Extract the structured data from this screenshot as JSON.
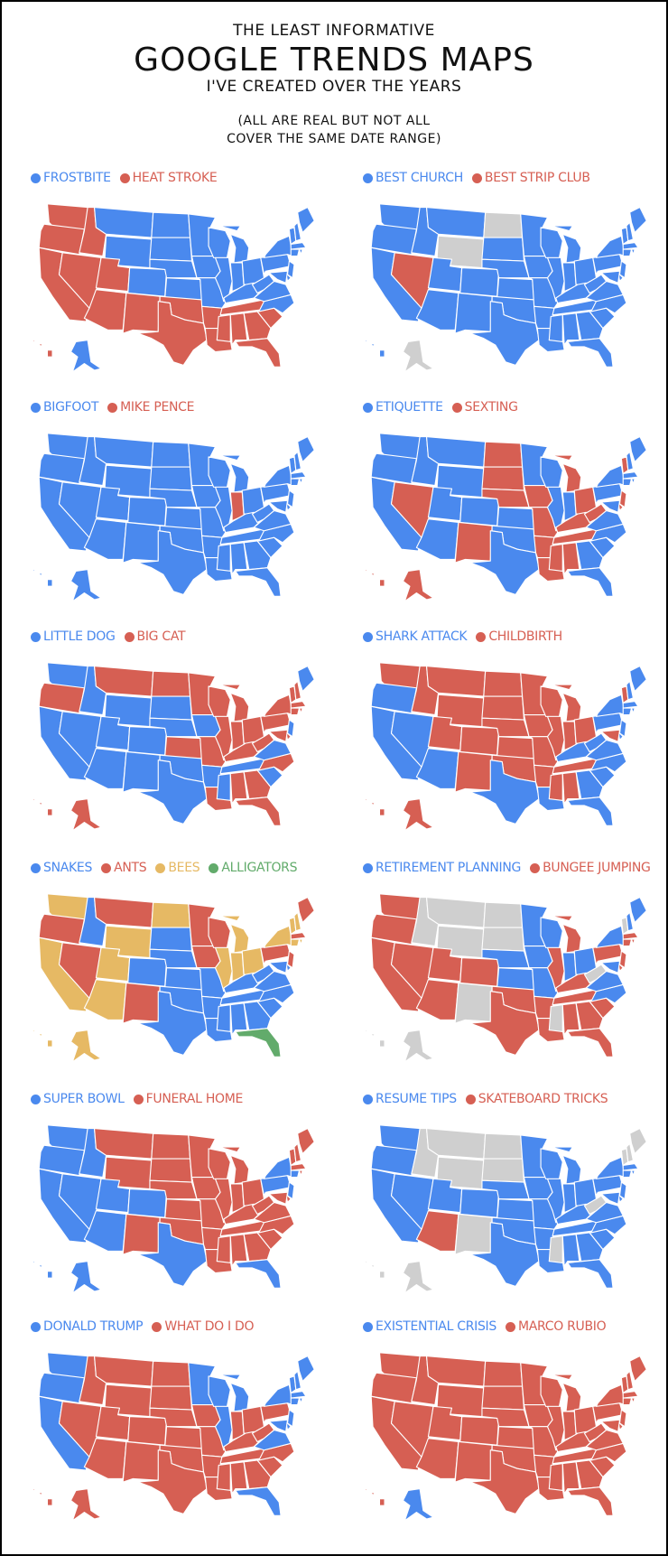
{
  "header": {
    "line1": "THE LEAST INFORMATIVE",
    "line2": "GOOGLE TRENDS MAPS",
    "line3": "I'VE CREATED OVER THE YEARS",
    "note_line1": "(ALL ARE REAL BUT NOT ALL",
    "note_line2": "COVER THE SAME DATE RANGE)"
  },
  "colors": {
    "B": "#4a89ee",
    "R": "#d65f53",
    "Y": "#e6b964",
    "G": "#62ab6b",
    "N": "#cfcfcf"
  },
  "maps": [
    {
      "legend": [
        {
          "label": "FROSTBITE",
          "color": "#4a89ee"
        },
        {
          "label": "HEAT STROKE",
          "color": "#d65f53"
        }
      ],
      "default": "B",
      "states": {
        "WA": "R",
        "OR": "R",
        "CA": "R",
        "ID": "R",
        "NV": "R",
        "UT": "R",
        "AZ": "R",
        "NM": "R",
        "TX": "R",
        "OK": "R",
        "AR": "R",
        "LA": "R",
        "MS": "R",
        "AL": "R",
        "GA": "R",
        "FL": "R",
        "SC": "R",
        "TN": "R",
        "HI": "R"
      }
    },
    {
      "legend": [
        {
          "label": "BEST CHURCH",
          "color": "#4a89ee"
        },
        {
          "label": "BEST STRIP CLUB",
          "color": "#d65f53"
        }
      ],
      "default": "B",
      "states": {
        "NV": "R",
        "WY": "N",
        "ND": "N",
        "AK": "N"
      }
    },
    {
      "legend": [
        {
          "label": "BIGFOOT",
          "color": "#4a89ee"
        },
        {
          "label": "MIKE PENCE",
          "color": "#d65f53"
        }
      ],
      "default": "B",
      "states": {
        "IN": "R"
      }
    },
    {
      "legend": [
        {
          "label": "ETIQUETTE",
          "color": "#4a89ee"
        },
        {
          "label": "SEXTING",
          "color": "#d65f53"
        }
      ],
      "default": "B",
      "states": {
        "NV": "R",
        "NM": "R",
        "ND": "R",
        "SD": "R",
        "NE": "R",
        "IA": "R",
        "MO": "R",
        "AR": "R",
        "LA": "R",
        "MS": "R",
        "AL": "R",
        "TN": "R",
        "KY": "R",
        "OH": "R",
        "WV": "R",
        "MI": "R",
        "VT": "R",
        "NJ": "R",
        "DE": "R",
        "AK": "R",
        "HI": "R"
      }
    },
    {
      "legend": [
        {
          "label": "LITTLE DOG",
          "color": "#4a89ee"
        },
        {
          "label": "BIG CAT",
          "color": "#d65f53"
        }
      ],
      "default": "B",
      "states": {
        "OR": "R",
        "MT": "R",
        "ND": "R",
        "MN": "R",
        "WI": "R",
        "MI": "R",
        "IL": "R",
        "IN": "R",
        "OH": "R",
        "KS": "R",
        "MO": "R",
        "KY": "R",
        "WV": "R",
        "PA": "R",
        "NY": "R",
        "VT": "R",
        "NH": "R",
        "MA": "R",
        "CT": "R",
        "RI": "R",
        "MD": "R",
        "DE": "R",
        "NC": "R",
        "AL": "R",
        "GA": "R",
        "FL": "R",
        "LA": "R",
        "AK": "R",
        "HI": "R"
      }
    },
    {
      "legend": [
        {
          "label": "SHARK ATTACK",
          "color": "#4a89ee"
        },
        {
          "label": "CHILDBIRTH",
          "color": "#d65f53"
        }
      ],
      "default": "R",
      "states": {
        "OR": "B",
        "CA": "B",
        "NV": "B",
        "AZ": "B",
        "TX": "B",
        "LA": "B",
        "GA": "B",
        "FL": "B",
        "SC": "B",
        "NC": "B",
        "VA": "B",
        "WV": "B",
        "KY": "B",
        "PA": "B",
        "NY": "B",
        "NJ": "B",
        "CT": "B",
        "RI": "B",
        "MA": "B",
        "NH": "B",
        "ME": "B",
        "DE": "B"
      }
    },
    {
      "legend": [
        {
          "label": "SNAKES",
          "color": "#4a89ee"
        },
        {
          "label": "ANTS",
          "color": "#d65f53"
        },
        {
          "label": "BEES",
          "color": "#e6b964"
        },
        {
          "label": "ALLIGATORS",
          "color": "#62ab6b"
        }
      ],
      "default": "B",
      "states": {
        "WA": "Y",
        "OR": "R",
        "CA": "Y",
        "NV": "R",
        "MT": "R",
        "ID": "B",
        "WY": "Y",
        "UT": "Y",
        "AZ": "Y",
        "NM": "R",
        "ND": "Y",
        "MN": "R",
        "WI": "R",
        "IA": "R",
        "MI": "Y",
        "IL": "Y",
        "IN": "Y",
        "OH": "Y",
        "PA": "R",
        "NJ": "R",
        "NY": "Y",
        "VT": "Y",
        "NH": "Y",
        "ME": "R",
        "MA": "R",
        "CT": "Y",
        "RI": "Y",
        "FL": "G",
        "AK": "Y",
        "HI": "Y"
      }
    },
    {
      "legend": [
        {
          "label": "RETIREMENT PLANNING",
          "color": "#4a89ee"
        },
        {
          "label": "BUNGEE JUMPING",
          "color": "#d65f53"
        }
      ],
      "default": "R",
      "states": {
        "ID": "N",
        "MT": "N",
        "WY": "N",
        "ND": "N",
        "SD": "N",
        "NM": "N",
        "MS": "N",
        "WV": "N",
        "VT": "N",
        "AK": "N",
        "HI": "N",
        "MN": "B",
        "WI": "B",
        "NE": "B",
        "KS": "B",
        "IA": "B",
        "MO": "B",
        "IN": "B",
        "OH": "B",
        "VA": "B",
        "NC": "B",
        "MD": "B",
        "NY": "B",
        "NH": "B",
        "ME": "B"
      }
    },
    {
      "legend": [
        {
          "label": "SUPER BOWL",
          "color": "#4a89ee"
        },
        {
          "label": "FUNERAL HOME",
          "color": "#d65f53"
        }
      ],
      "default": "R",
      "states": {
        "WA": "B",
        "OR": "B",
        "CA": "B",
        "ID": "B",
        "NV": "B",
        "UT": "B",
        "AZ": "B",
        "CO": "B",
        "TX": "B",
        "FL": "B",
        "NY": "B",
        "PA": "B",
        "NJ": "B",
        "CT": "B",
        "AK": "B",
        "HI": "B"
      }
    },
    {
      "legend": [
        {
          "label": "RESUME TIPS",
          "color": "#4a89ee"
        },
        {
          "label": "SKATEBOARD TRICKS",
          "color": "#d65f53"
        }
      ],
      "default": "B",
      "states": {
        "AZ": "R",
        "ID": "N",
        "MT": "N",
        "WY": "N",
        "ND": "N",
        "SD": "N",
        "NM": "N",
        "MS": "N",
        "WV": "N",
        "VT": "N",
        "NH": "N",
        "ME": "N",
        "AK": "N",
        "HI": "N"
      }
    },
    {
      "legend": [
        {
          "label": "DONALD TRUMP",
          "color": "#4a89ee"
        },
        {
          "label": "WHAT DO I DO",
          "color": "#d65f53"
        }
      ],
      "default": "R",
      "states": {
        "WA": "B",
        "OR": "B",
        "CA": "B",
        "MN": "B",
        "WI": "B",
        "MI": "B",
        "IL": "B",
        "VA": "B",
        "MD": "B",
        "DE": "B",
        "NJ": "B",
        "NY": "B",
        "CT": "B",
        "RI": "B",
        "MA": "B",
        "VT": "B",
        "NH": "B",
        "ME": "B",
        "FL": "B"
      }
    },
    {
      "legend": [
        {
          "label": "EXISTENTIAL CRISIS",
          "color": "#4a89ee"
        },
        {
          "label": "MARCO RUBIO",
          "color": "#d65f53"
        }
      ],
      "default": "R",
      "states": {
        "AK": "B"
      }
    }
  ]
}
